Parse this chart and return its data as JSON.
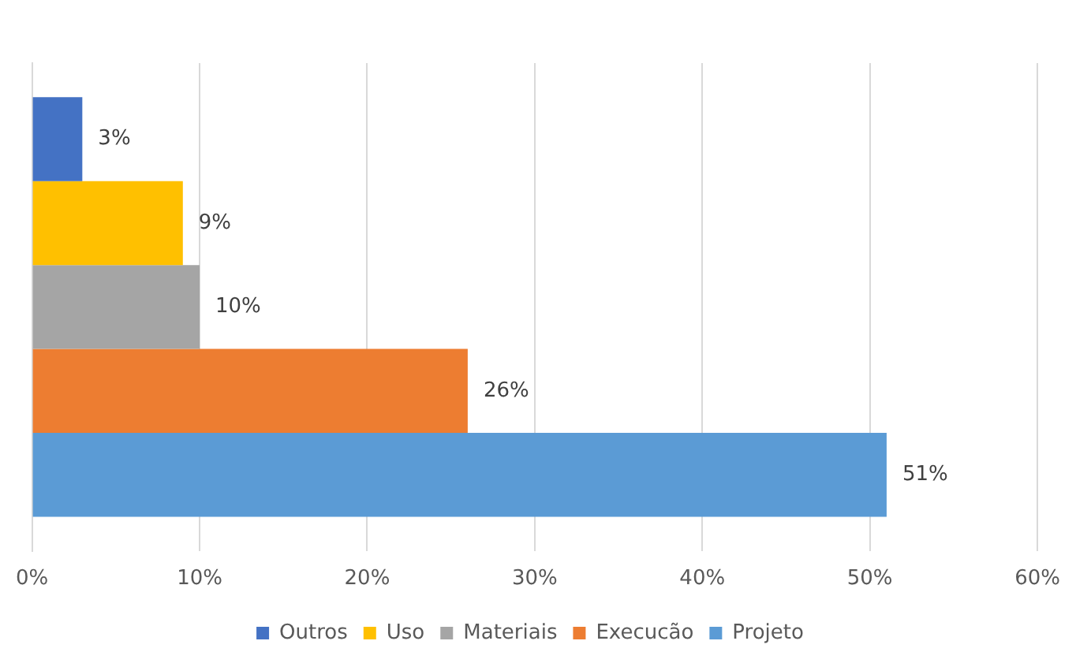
{
  "chart_data": {
    "type": "bar",
    "orientation": "horizontal",
    "categories": [
      null
    ],
    "series": [
      {
        "name": "Outros",
        "color": "#4472c4",
        "values": [
          3
        ],
        "value_labels": [
          "3%"
        ]
      },
      {
        "name": "Uso",
        "color": "#ffc000",
        "values": [
          9
        ],
        "value_labels": [
          "9%"
        ]
      },
      {
        "name": "Materiais",
        "color": "#a5a5a5",
        "values": [
          10
        ],
        "value_labels": [
          "10%"
        ]
      },
      {
        "name": "Execucão",
        "color": "#ed7d31",
        "values": [
          26
        ],
        "value_labels": [
          "26%"
        ]
      },
      {
        "name": "Projeto",
        "color": "#5b9bd5",
        "values": [
          51
        ],
        "value_labels": [
          "51%"
        ]
      }
    ],
    "xlim": [
      0,
      60
    ],
    "xticks": [
      {
        "value": 0,
        "label": "0%"
      },
      {
        "value": 10,
        "label": "10%"
      },
      {
        "value": 20,
        "label": "20%"
      },
      {
        "value": 30,
        "label": "30%"
      },
      {
        "value": 40,
        "label": "40%"
      },
      {
        "value": 50,
        "label": "50%"
      },
      {
        "value": 60,
        "label": "60%"
      }
    ],
    "grid": "x",
    "legend": "bottom"
  }
}
